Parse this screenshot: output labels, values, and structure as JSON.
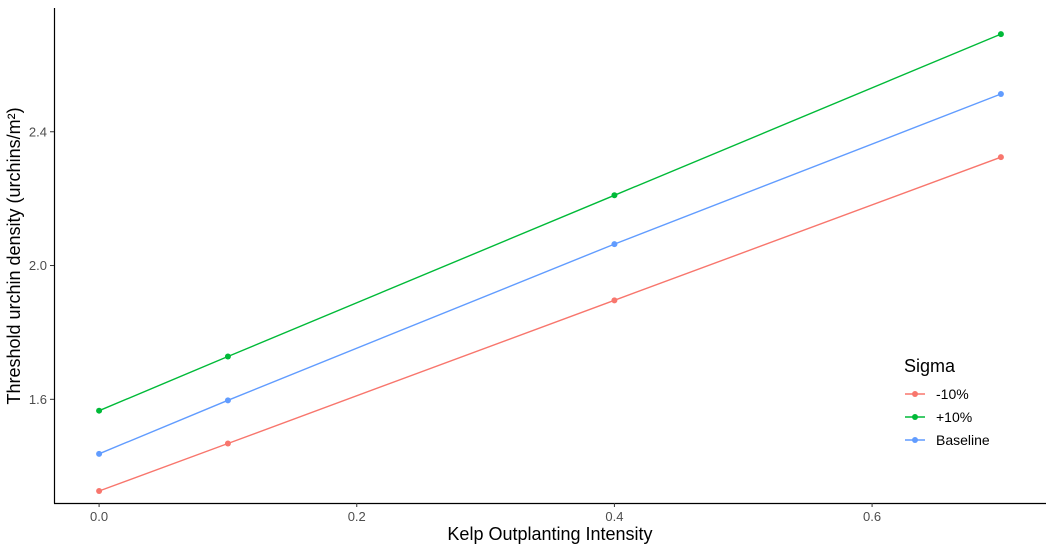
{
  "chart_data": {
    "type": "line",
    "xlabel": "Kelp Outplanting Intensity",
    "ylabel": "Threshold urchin density (urchins/m²)",
    "xlim": [
      -0.035,
      0.735
    ],
    "ylim": [
      1.29,
      2.77
    ],
    "xticks": [
      0.0,
      0.2,
      0.4,
      0.6
    ],
    "xtick_labels": [
      "0.0",
      "0.2",
      "0.4",
      "0.6"
    ],
    "yticks": [
      1.6,
      2.0,
      2.4
    ],
    "ytick_labels": [
      "1.6",
      "2.0",
      "2.4"
    ],
    "x": [
      0.0,
      0.1,
      0.4,
      0.7
    ],
    "grid": false,
    "legend": {
      "title": "Sigma",
      "placement": "right"
    },
    "series": [
      {
        "name": "-10%",
        "color": "#F8766D",
        "values": [
          1.326,
          1.468,
          1.896,
          2.324
        ]
      },
      {
        "name": "+10%",
        "color": "#00BA38",
        "values": [
          1.566,
          1.728,
          2.21,
          2.692
        ]
      },
      {
        "name": "Baseline",
        "color": "#619CFF",
        "values": [
          1.437,
          1.597,
          2.064,
          2.513
        ]
      }
    ]
  }
}
